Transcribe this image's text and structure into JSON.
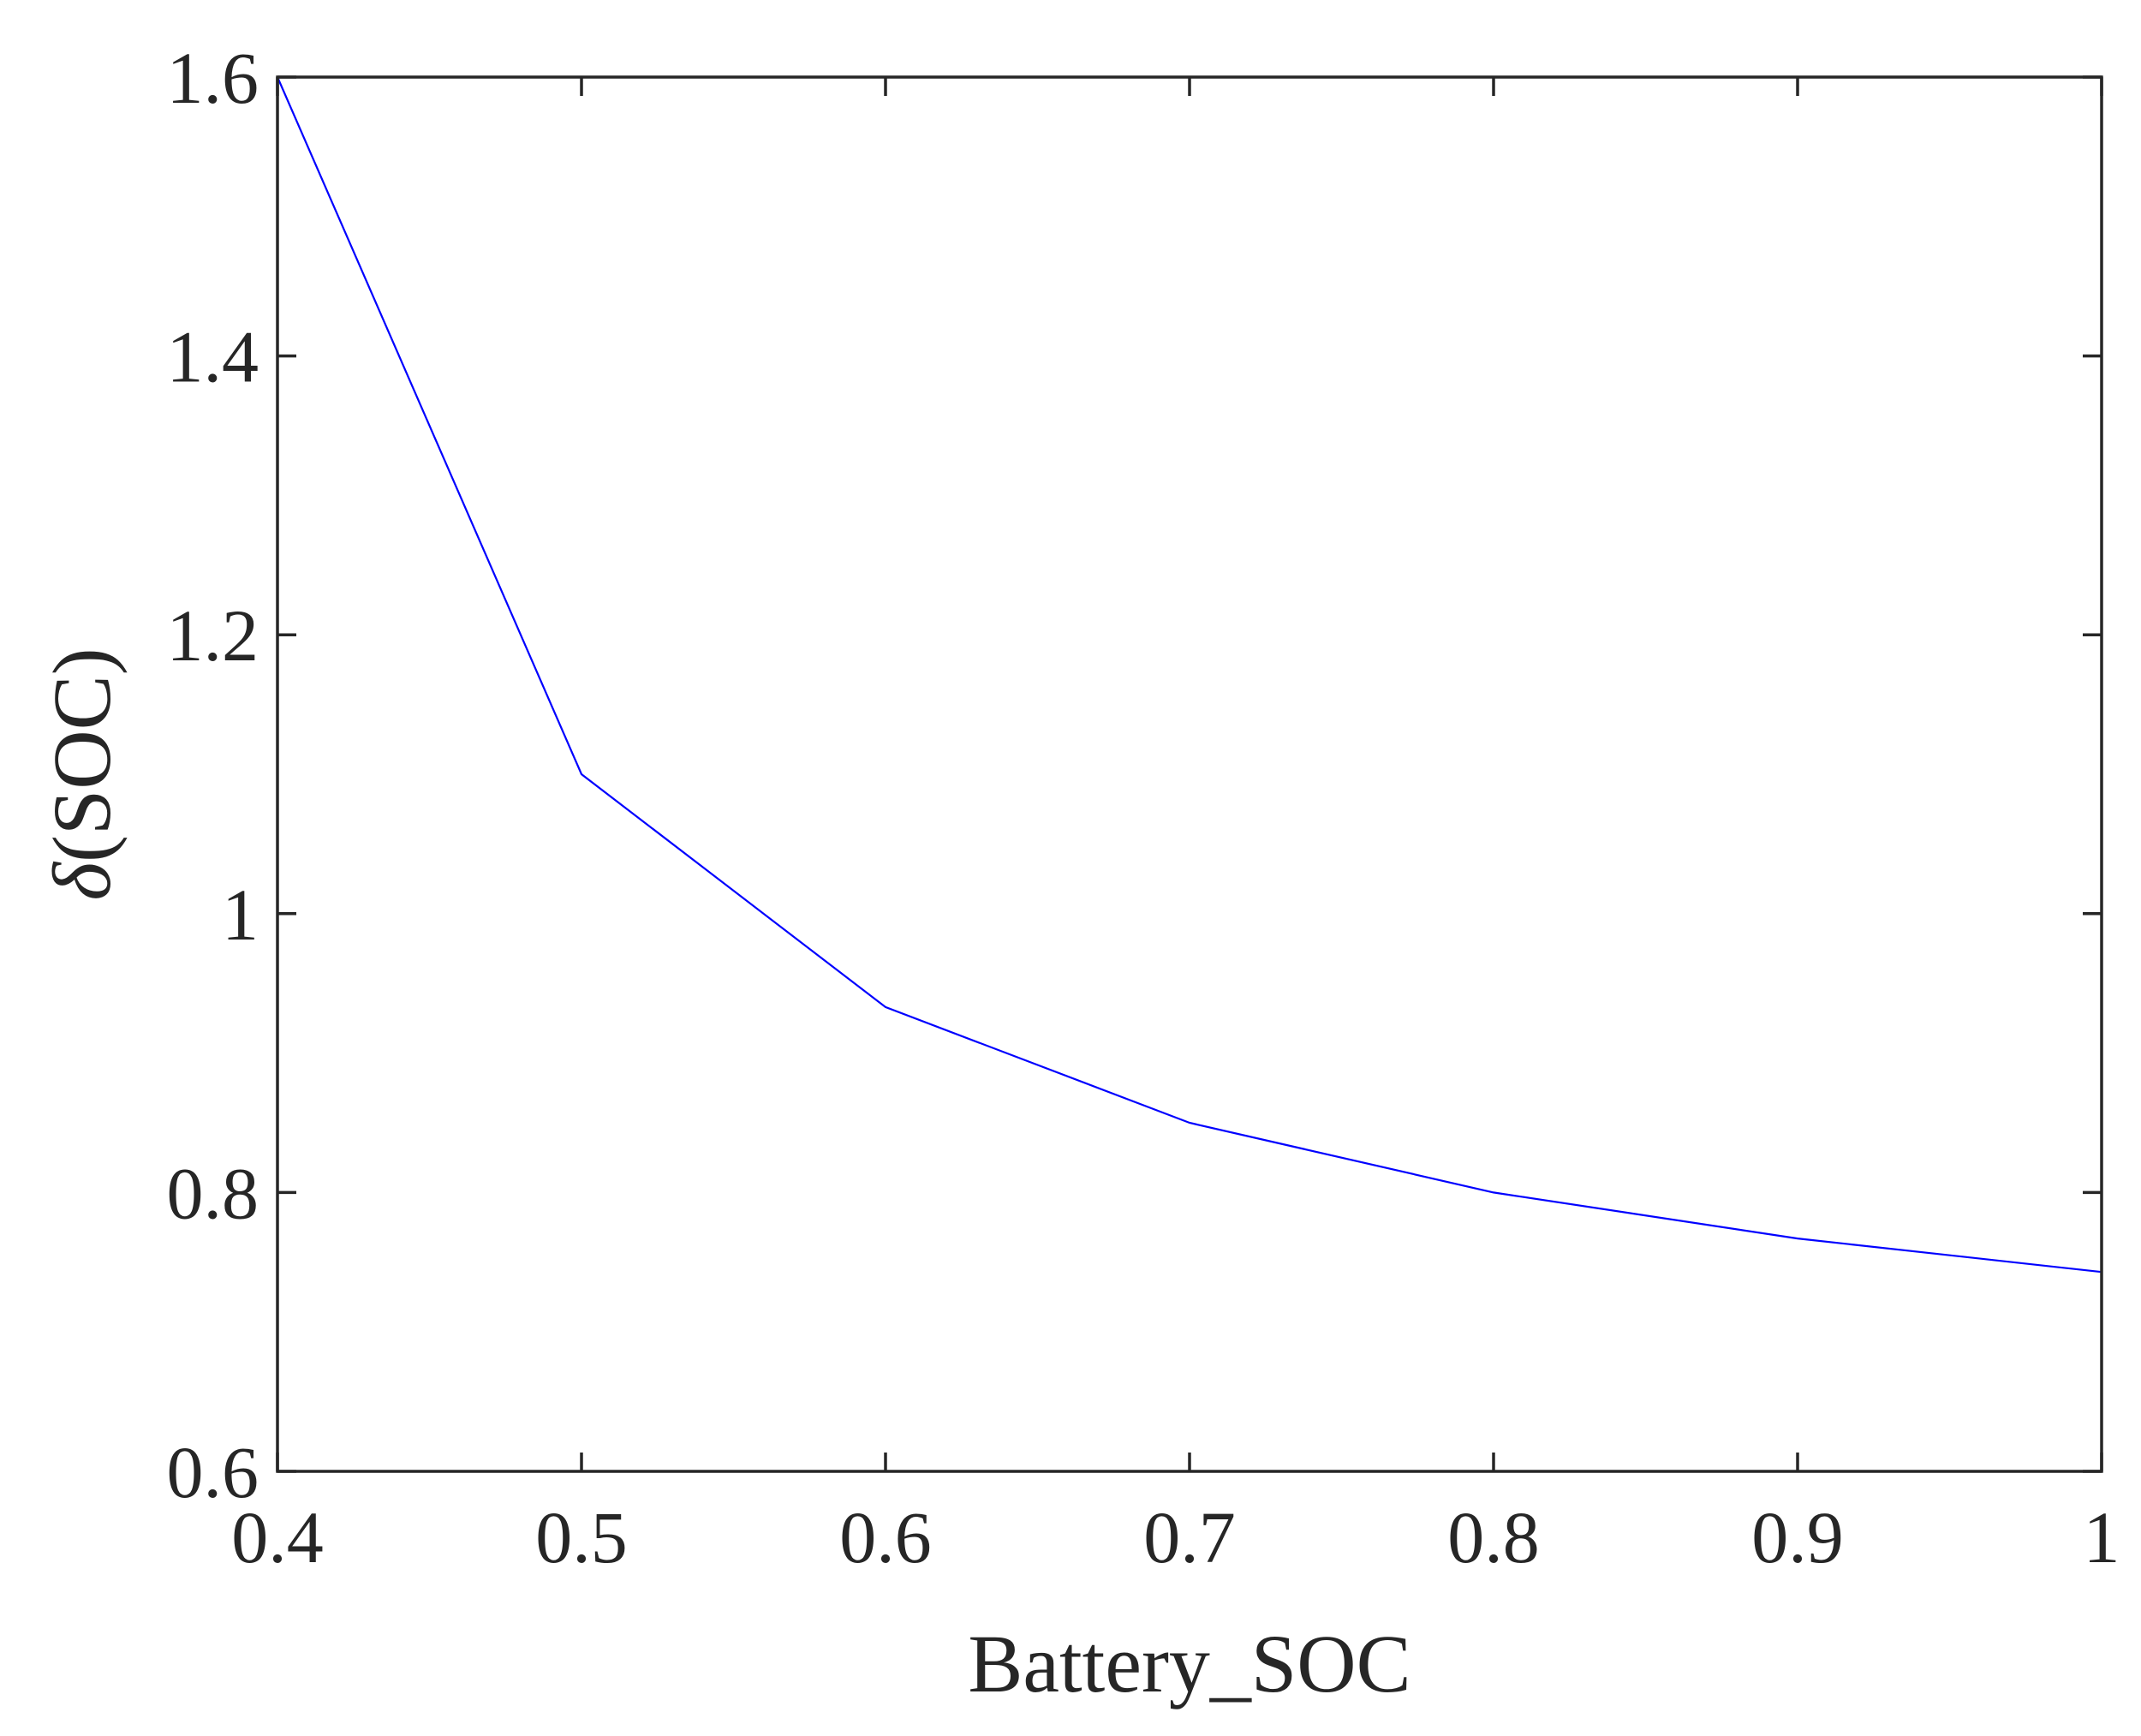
{
  "chart_data": {
    "type": "line",
    "title": "",
    "xlabel": "Battery_SOC",
    "ylabel_symbol": "δ",
    "ylabel_rest": "(SOC)",
    "xlim": [
      0.4,
      1.0
    ],
    "ylim": [
      0.6,
      1.6
    ],
    "xticks": [
      0.4,
      0.5,
      0.6,
      0.7,
      0.8,
      0.9,
      1.0
    ],
    "xtick_labels": [
      "0.4",
      "0.5",
      "0.6",
      "0.7",
      "0.8",
      "0.9",
      "1"
    ],
    "yticks": [
      0.6,
      0.8,
      1.0,
      1.2,
      1.4,
      1.6
    ],
    "ytick_labels": [
      "0.6",
      "0.8",
      "1",
      "1.2",
      "1.4",
      "1.6"
    ],
    "grid": false,
    "series": [
      {
        "color": "#0000ff",
        "x": [
          0.4,
          0.5,
          0.6,
          0.7,
          0.8,
          0.9,
          1.0
        ],
        "y": [
          1.6,
          1.1,
          0.933,
          0.85,
          0.8,
          0.767,
          0.743
        ]
      }
    ]
  }
}
